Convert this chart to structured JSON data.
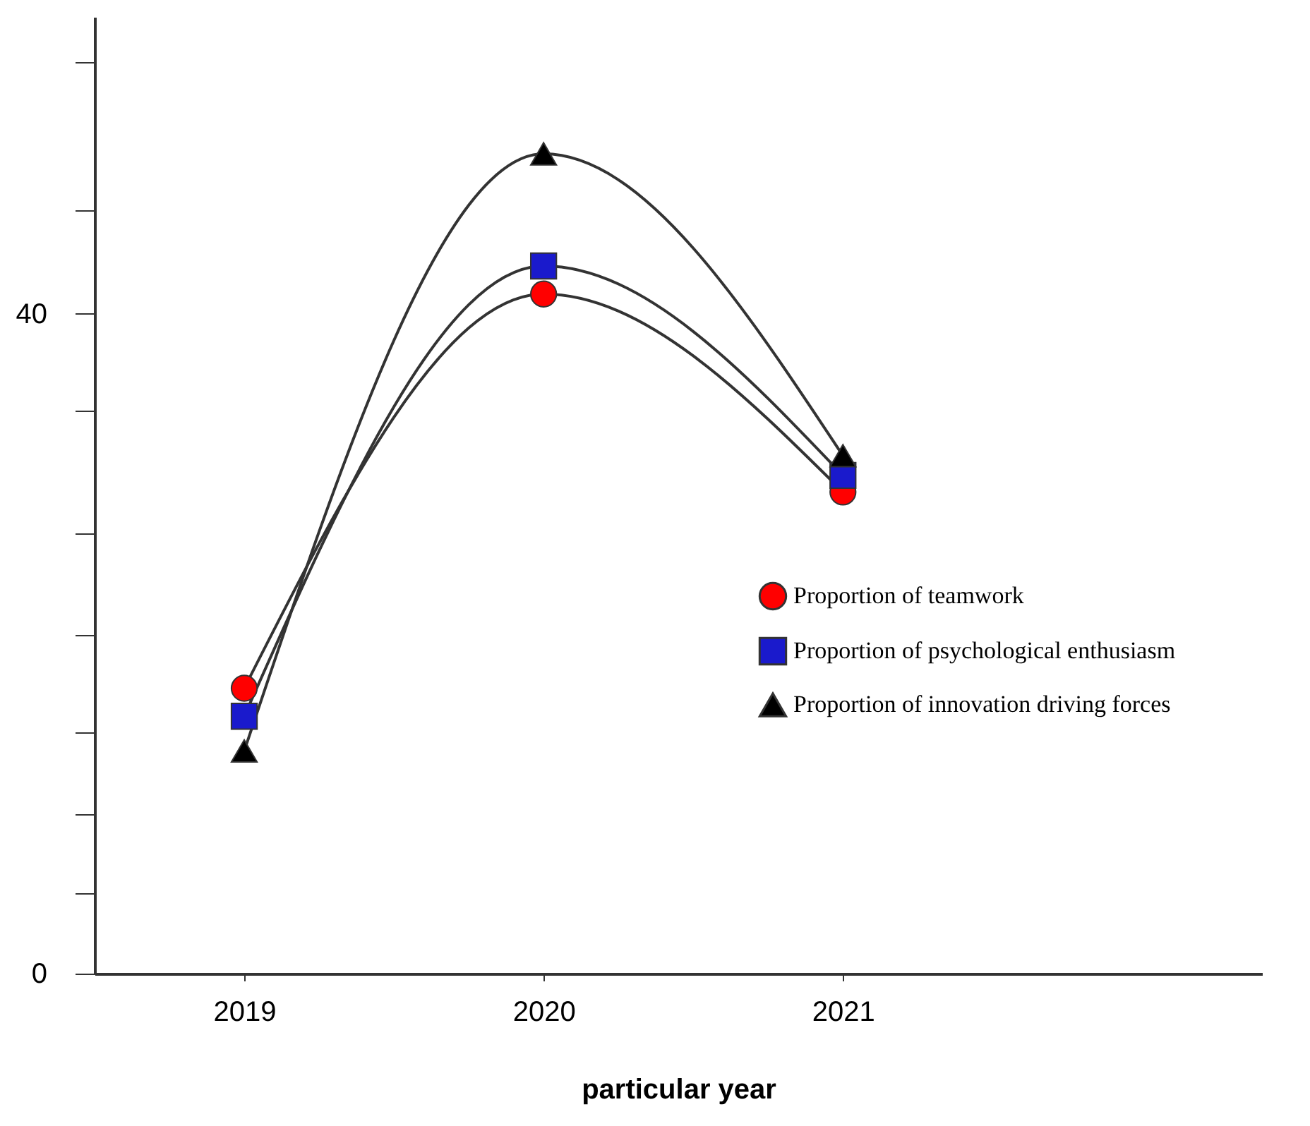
{
  "chart_data": {
    "type": "line",
    "xlabel": "particular year",
    "x": [
      2019,
      2020,
      2021
    ],
    "xlim": [
      2018.5,
      2022.4
    ],
    "xticks": [
      2019,
      2020,
      2021
    ],
    "ylim": [
      0,
      58
    ],
    "yticks": [
      0,
      {
        "value": 4.9,
        "label": null
      },
      {
        "value": 9.7,
        "label": null
      },
      {
        "value": 14.6,
        "label": null
      },
      {
        "value": 20.5,
        "label": null
      },
      {
        "value": 26.7,
        "label": null
      },
      {
        "value": 34.1,
        "label": null
      },
      40,
      {
        "value": 46.3,
        "label": null
      },
      {
        "value": 55.3,
        "label": null
      }
    ],
    "grid": false,
    "legend": "right",
    "line_style": "solid",
    "series": [
      {
        "name": "Proportion of teamwork",
        "color": "#ff0000",
        "marker": "circle",
        "values": [
          17.3,
          41.2,
          29.2
        ]
      },
      {
        "name": "Proportion of psychological enthusiasm",
        "color": "#1a1acc",
        "marker": "square",
        "values": [
          15.6,
          42.9,
          30.2
        ]
      },
      {
        "name": "Proportion of innovation driving forces",
        "color": "#000000",
        "marker": "triangle",
        "values": [
          13.5,
          49.7,
          31.4
        ]
      }
    ]
  }
}
